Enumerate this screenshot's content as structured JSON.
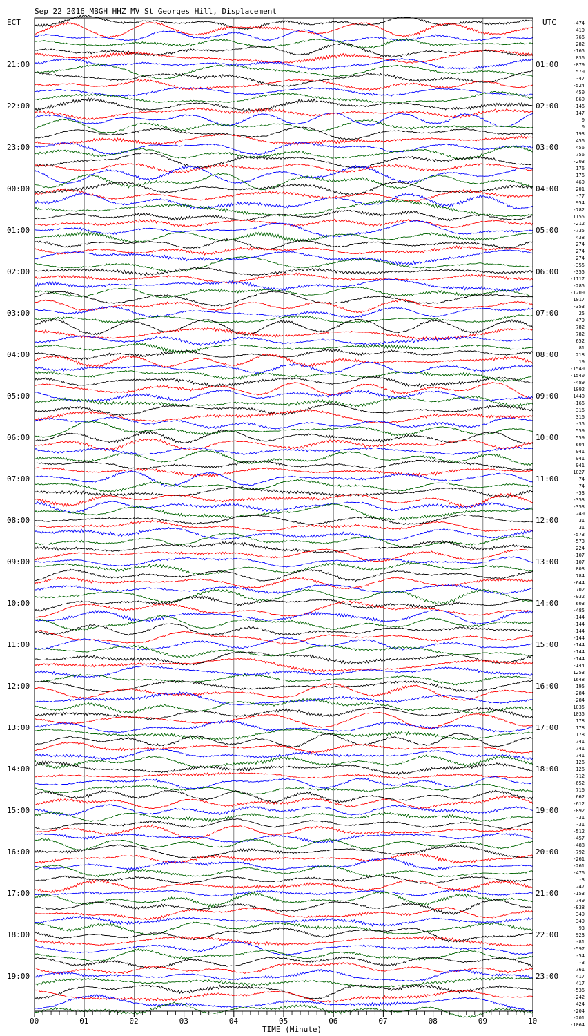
{
  "chart_data": {
    "type": "line",
    "title": "Sep 22 2016 MBGH HHZ MV St Georges Hill, Displacement",
    "left_axis_label": "ECT",
    "right_axis_label": "UTC",
    "xlabel": "TIME (Minute)",
    "x_ticks": [
      "00",
      "01",
      "02",
      "03",
      "04",
      "05",
      "06",
      "07",
      "08",
      "09",
      "10"
    ],
    "xlim": [
      0,
      10
    ],
    "left_hour_labels": [
      "21:00",
      "22:00",
      "23:00",
      "00:00",
      "01:00",
      "02:00",
      "03:00",
      "04:00",
      "05:00",
      "06:00",
      "07:00",
      "08:00",
      "09:00",
      "10:00",
      "11:00",
      "12:00",
      "13:00",
      "14:00",
      "15:00",
      "16:00",
      "17:00",
      "18:00",
      "19:00"
    ],
    "right_hour_labels": [
      "01:00",
      "02:00",
      "03:00",
      "04:00",
      "05:00",
      "06:00",
      "07:00",
      "08:00",
      "09:00",
      "10:00",
      "11:00",
      "12:00",
      "13:00",
      "14:00",
      "15:00",
      "16:00",
      "17:00",
      "18:00",
      "19:00",
      "20:00",
      "21:00",
      "22:00",
      "23:00"
    ],
    "trace_colors": [
      "#000000",
      "#ff0000",
      "#0000ff",
      "#006400"
    ],
    "trace_offsets": [
      "-474",
      "410",
      "766",
      "282",
      "-165",
      "836",
      "-879",
      "570",
      "-47",
      "-524",
      "450",
      "860",
      "-146",
      "147",
      "0",
      "0",
      "193",
      "456",
      "456",
      "756",
      "-203",
      "176",
      "176",
      "469",
      "201",
      "-77",
      "954",
      "-782",
      "1155",
      "-212",
      "-735",
      "438",
      "274",
      "274",
      "274",
      "-355",
      "-355",
      "-1117",
      "-285",
      "-1200",
      "1017",
      "-353",
      "25",
      "479",
      "782",
      "782",
      "652",
      "81",
      "218",
      "19",
      "-1540",
      "-1540",
      "-489",
      "1092",
      "1440",
      "-166",
      "316",
      "316",
      "-35",
      "559",
      "559",
      "604",
      "941",
      "941",
      "941",
      "1027",
      "74",
      "74",
      "-53",
      "-353",
      "-353",
      "240",
      "31",
      "31",
      "-573",
      "-573",
      "224",
      "-107",
      "-107",
      "803",
      "784",
      "-644",
      "702",
      "-932",
      "603",
      "-485",
      "-144",
      "-144",
      "-144",
      "-144",
      "-144",
      "-144",
      "-144",
      "-144",
      "1253",
      "1648",
      "195",
      "-284",
      "-284",
      "1035",
      "1035",
      "178",
      "178",
      "178",
      "741",
      "741",
      "741",
      "126",
      "126",
      "-712",
      "-652",
      "716",
      "662",
      "-612",
      "-892",
      "-31",
      "-31",
      "-512",
      "-457",
      "-488",
      "-792",
      "-261",
      "-261",
      "-476",
      "-3",
      "247",
      "-153",
      "749",
      "-838",
      "349",
      "349",
      "93",
      "923",
      "-81",
      "-597",
      "-54",
      "-3",
      "761",
      "417",
      "417",
      "-536",
      "-242",
      "424",
      "-204",
      "-201",
      "-1064"
    ]
  }
}
